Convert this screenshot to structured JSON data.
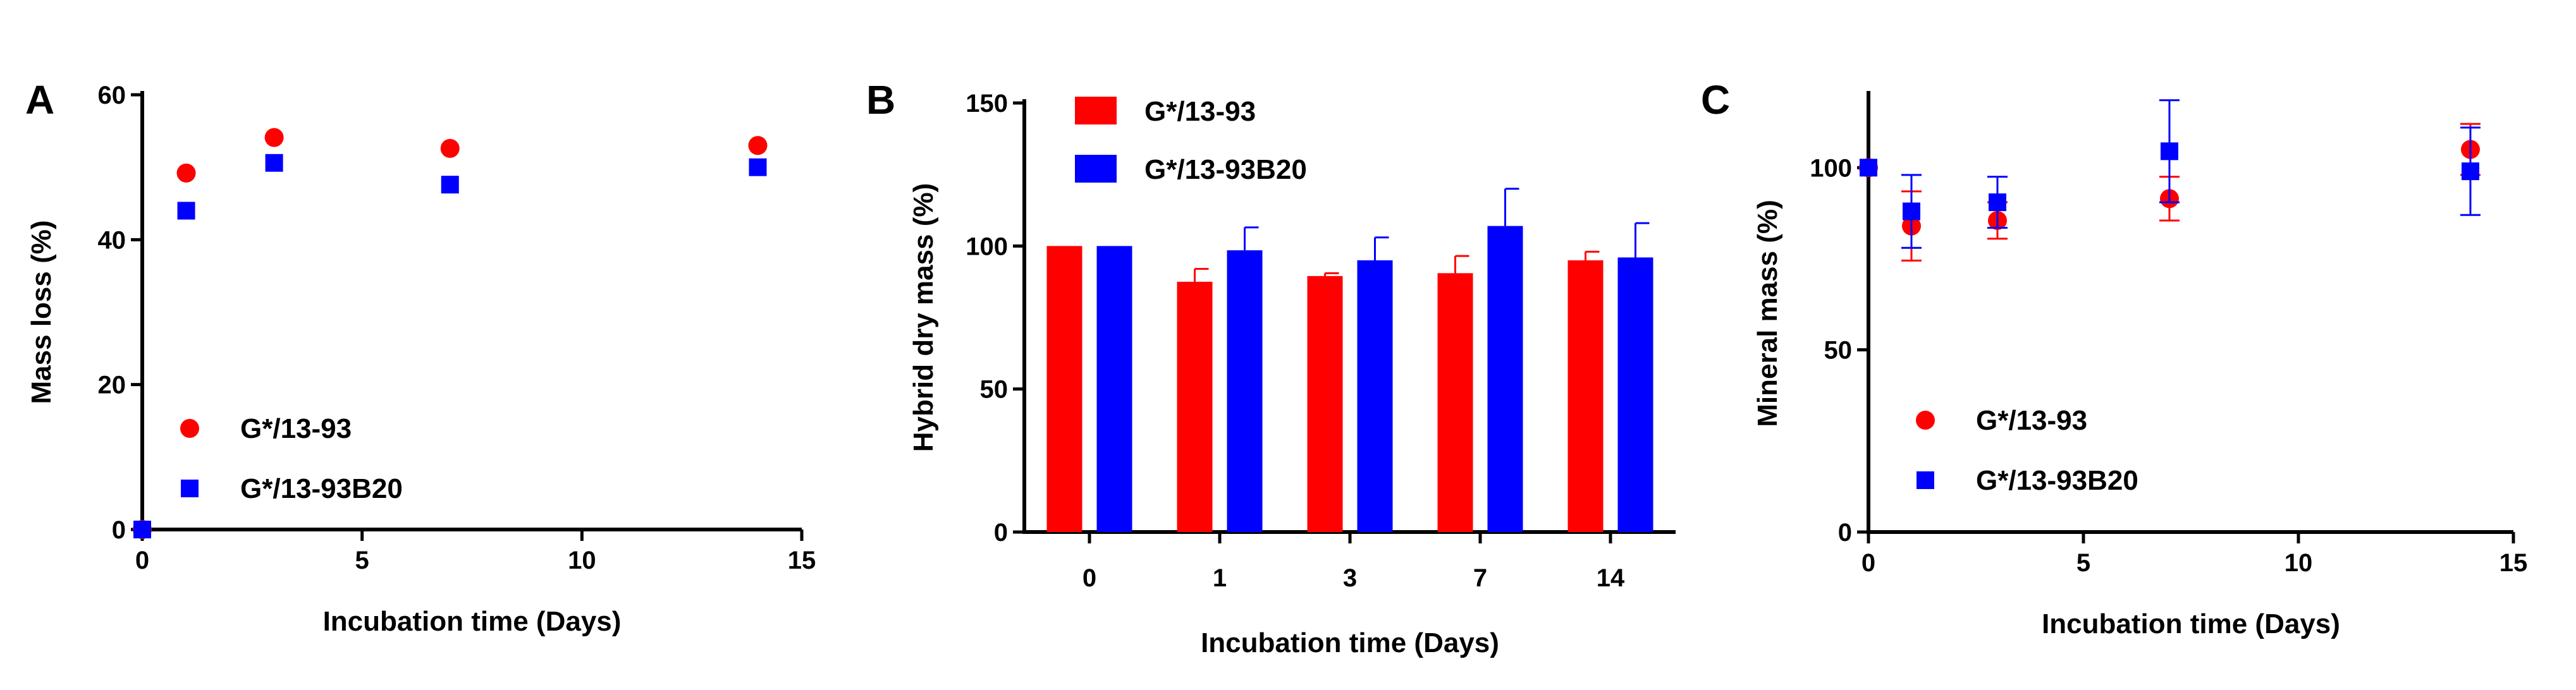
{
  "colors": {
    "red": "#ff0000",
    "blue": "#0000ff",
    "axis": "#000000"
  },
  "chart_data": [
    {
      "panel": "A",
      "type": "scatter",
      "xlabel": "Incubation time (Days)",
      "ylabel": "Mass loss (%)",
      "xlim": [
        0,
        15
      ],
      "ylim": [
        0,
        60
      ],
      "xticks": [
        "0",
        "5",
        "10",
        "15"
      ],
      "yticks": [
        "0",
        "20",
        "40",
        "60"
      ],
      "legend_position": "lower-left",
      "series": [
        {
          "name": "G*/13-93",
          "marker": "circle",
          "color": "#ff0000",
          "x": [
            0,
            1,
            3,
            7,
            14
          ],
          "y": [
            0,
            49.2,
            54.1,
            52.6,
            53.0
          ]
        },
        {
          "name": "G*/13-93B20",
          "marker": "square",
          "color": "#0000ff",
          "x": [
            0,
            1,
            3,
            7,
            14
          ],
          "y": [
            0,
            44.0,
            50.6,
            47.6,
            50.0
          ]
        }
      ]
    },
    {
      "panel": "B",
      "type": "bar",
      "xlabel": "Incubation time (Days)",
      "ylabel": "Hybrid dry mass (%)",
      "categories": [
        "0",
        "1",
        "3",
        "7",
        "14"
      ],
      "ylim": [
        0,
        150
      ],
      "yticks": [
        "0",
        "50",
        "100",
        "150"
      ],
      "legend_position": "top-left",
      "series": [
        {
          "name": "G*/13-93",
          "color": "#ff0000",
          "values": [
            100,
            87.5,
            89.5,
            90.5,
            95
          ],
          "errors": [
            0,
            4.5,
            1,
            6,
            3
          ]
        },
        {
          "name": "G*/13-93B20",
          "color": "#0000ff",
          "values": [
            100,
            98.5,
            95,
            107,
            96
          ],
          "errors": [
            0,
            8,
            8,
            13,
            12
          ]
        }
      ]
    },
    {
      "panel": "C",
      "type": "scatter",
      "xlabel": "Incubation time (Days)",
      "ylabel": "Mineral mass (%)",
      "xlim": [
        0,
        15
      ],
      "ylim": [
        0,
        120
      ],
      "xticks": [
        "0",
        "5",
        "10",
        "15"
      ],
      "yticks": [
        "0",
        "50",
        "100"
      ],
      "ytick_values": [
        0,
        50,
        100
      ],
      "legend_position": "lower-left",
      "series": [
        {
          "name": "G*/13-93",
          "marker": "circle",
          "color": "#ff0000",
          "x": [
            0,
            1,
            3,
            7,
            14
          ],
          "y": [
            100,
            84,
            85.5,
            91.5,
            105
          ],
          "errors": [
            0,
            9.5,
            5,
            6,
            7
          ]
        },
        {
          "name": "G*/13-93B20",
          "marker": "square",
          "color": "#0000ff",
          "x": [
            0,
            1,
            3,
            7,
            14
          ],
          "y": [
            100,
            88,
            90.5,
            104.5,
            99
          ],
          "errors": [
            0,
            10,
            7,
            14,
            12
          ]
        }
      ]
    }
  ]
}
